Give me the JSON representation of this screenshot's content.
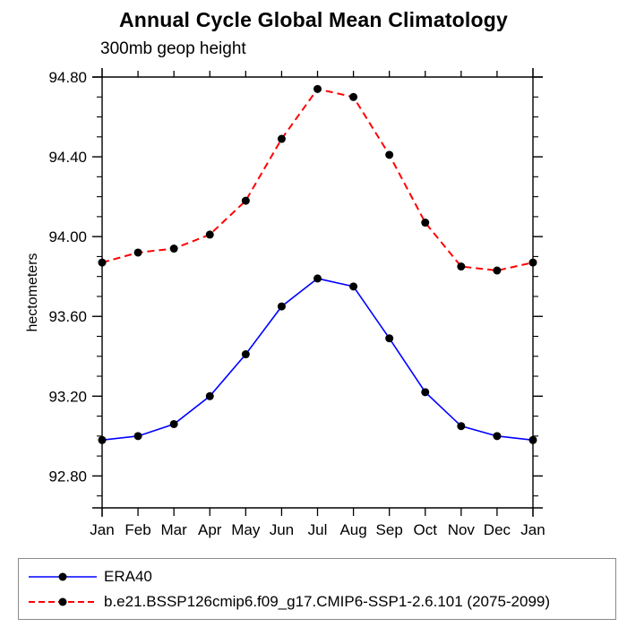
{
  "title": "Annual Cycle Global Mean Climatology",
  "subtitle": "300mb geop height",
  "chart_data": {
    "type": "line",
    "categories": [
      "Jan",
      "Feb",
      "Mar",
      "Apr",
      "May",
      "Jun",
      "Jul",
      "Aug",
      "Sep",
      "Oct",
      "Nov",
      "Dec",
      "Jan"
    ],
    "series": [
      {
        "name": "ERA40",
        "line_color": "#0000ff",
        "line_style": "solid",
        "line_width": 1.6,
        "marker": "filled-circle",
        "marker_color": "#000000",
        "values": [
          92.98,
          93.0,
          93.06,
          93.2,
          93.41,
          93.65,
          93.79,
          93.75,
          93.49,
          93.22,
          93.05,
          93.0,
          92.98
        ]
      },
      {
        "name": "b.e21.BSSP126cmip6.f09_g17.CMIP6-SSP1-2.6.101 (2075-2099)",
        "line_color": "#ff0000",
        "line_style": "dashed",
        "line_width": 2,
        "marker": "filled-circle",
        "marker_color": "#000000",
        "values": [
          93.87,
          93.92,
          93.94,
          94.01,
          94.18,
          94.49,
          94.74,
          94.7,
          94.41,
          94.07,
          93.85,
          93.83,
          93.87
        ]
      }
    ],
    "xlabel": "",
    "ylabel": "hectometers",
    "ylim": [
      92.64,
      94.8
    ],
    "ytick_major": [
      94.8,
      94.4,
      94.0,
      93.6,
      93.2,
      92.8
    ],
    "ytick_labels": [
      "94.80",
      "94.40",
      "94.00",
      "93.60",
      "93.20",
      "92.80"
    ],
    "ytick_minor_step": 0.1,
    "grid": false,
    "legend_position": "bottom",
    "axis_color": "#000000",
    "text_color": "#000000"
  }
}
